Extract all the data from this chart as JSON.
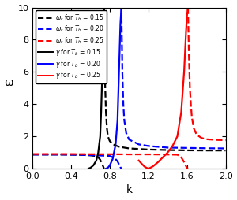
{
  "xlabel": "k",
  "ylabel": "ω",
  "xlim": [
    0.0,
    2.0
  ],
  "ylim": [
    0.0,
    10.0
  ],
  "xticks": [
    0.0,
    0.4,
    0.8,
    1.2,
    1.6,
    2.0
  ],
  "yticks": [
    0,
    2,
    4,
    6,
    8,
    10
  ],
  "legend_entries": [
    {
      "label": "$\\omega_r$ for $T_b$ = 0.15",
      "color": "black",
      "ls": "dashed"
    },
    {
      "label": "$\\omega_r$ for $T_b$ = 0.20",
      "color": "blue",
      "ls": "dashed"
    },
    {
      "label": "$\\omega_r$ for $T_b$ = 0.25",
      "color": "red",
      "ls": "dashed"
    },
    {
      "label": "$\\gamma$ for $T_b$ = 0.15",
      "color": "black",
      "ls": "solid"
    },
    {
      "label": "$\\gamma$ for $T_b$ = 0.20",
      "color": "blue",
      "ls": "solid"
    },
    {
      "label": "$\\gamma$ for $T_b$ = 0.25",
      "color": "red",
      "ls": "solid"
    }
  ],
  "curves": {
    "omega_r_black": {
      "color": "black",
      "ls": "dashed",
      "lw": 1.6,
      "segments": [
        {
          "k": [
            0.0,
            0.1,
            0.2,
            0.3,
            0.4,
            0.5,
            0.6,
            0.65,
            0.68,
            0.7,
            0.72,
            0.73,
            0.74
          ],
          "omega": [
            0.87,
            0.87,
            0.87,
            0.87,
            0.86,
            0.85,
            0.82,
            0.78,
            0.7,
            0.55,
            0.3,
            0.15,
            0.0
          ]
        },
        {
          "k": [
            0.74,
            0.745,
            0.75,
            0.76,
            0.77,
            0.78,
            0.8,
            0.85,
            0.9,
            1.0,
            1.2,
            1.4,
            1.6,
            1.8,
            2.0
          ],
          "omega": [
            10.0,
            8.0,
            5.5,
            3.5,
            2.5,
            2.0,
            1.7,
            1.45,
            1.35,
            1.25,
            1.18,
            1.15,
            1.13,
            1.12,
            1.12
          ]
        }
      ]
    },
    "omega_r_blue": {
      "color": "blue",
      "ls": "dashed",
      "lw": 1.6,
      "segments": [
        {
          "k": [
            0.0,
            0.1,
            0.2,
            0.3,
            0.4,
            0.5,
            0.6,
            0.7,
            0.8,
            0.85,
            0.88,
            0.9,
            0.91,
            0.92
          ],
          "omega": [
            0.87,
            0.87,
            0.87,
            0.87,
            0.86,
            0.85,
            0.83,
            0.81,
            0.78,
            0.65,
            0.45,
            0.2,
            0.08,
            0.0
          ]
        },
        {
          "k": [
            0.92,
            0.925,
            0.93,
            0.94,
            0.95,
            0.97,
            1.0,
            1.1,
            1.2,
            1.4,
            1.6,
            1.8,
            2.0
          ],
          "omega": [
            10.0,
            8.0,
            6.0,
            4.0,
            3.0,
            2.2,
            1.8,
            1.5,
            1.4,
            1.3,
            1.28,
            1.26,
            1.25
          ]
        }
      ]
    },
    "omega_r_red": {
      "color": "red",
      "ls": "dashed",
      "lw": 1.6,
      "segments": [
        {
          "k": [
            0.0,
            0.2,
            0.4,
            0.6,
            0.8,
            1.0,
            1.2,
            1.4,
            1.5,
            1.54,
            1.57,
            1.59,
            1.6,
            1.61
          ],
          "omega": [
            0.9,
            0.9,
            0.9,
            0.89,
            0.89,
            0.88,
            0.88,
            0.87,
            0.86,
            0.7,
            0.4,
            0.15,
            0.04,
            0.0
          ]
        },
        {
          "k": [
            1.61,
            1.615,
            1.62,
            1.63,
            1.64,
            1.65,
            1.67,
            1.7,
            1.75,
            1.8,
            1.9,
            2.0
          ],
          "omega": [
            10.0,
            8.5,
            7.0,
            5.0,
            4.0,
            3.2,
            2.5,
            2.1,
            1.9,
            1.82,
            1.78,
            1.76
          ]
        }
      ]
    },
    "gamma_black": {
      "color": "black",
      "ls": "solid",
      "lw": 1.6,
      "segments": [
        {
          "k": [
            0.58,
            0.6,
            0.63,
            0.66,
            0.68,
            0.7,
            0.71,
            0.72,
            0.73,
            0.74
          ],
          "omega": [
            0.0,
            0.05,
            0.2,
            0.5,
            1.0,
            2.0,
            3.5,
            5.5,
            8.0,
            10.0
          ]
        }
      ]
    },
    "gamma_blue": {
      "color": "blue",
      "ls": "solid",
      "lw": 1.6,
      "segments": [
        {
          "k": [
            0.76,
            0.78,
            0.8,
            0.83,
            0.86,
            0.88,
            0.89,
            0.9,
            0.91,
            0.92
          ],
          "omega": [
            0.0,
            0.05,
            0.2,
            0.6,
            1.5,
            3.0,
            5.0,
            7.0,
            9.0,
            10.0
          ]
        }
      ]
    },
    "gamma_red": {
      "color": "red",
      "ls": "solid",
      "lw": 1.6,
      "segments": [
        {
          "k": [
            1.1,
            1.13,
            1.16,
            1.18,
            1.2,
            1.22,
            1.25,
            1.3,
            1.35,
            1.4,
            1.45,
            1.5,
            1.54,
            1.57,
            1.59,
            1.6,
            1.61
          ],
          "omega": [
            0.5,
            0.3,
            0.12,
            0.05,
            0.0,
            0.05,
            0.15,
            0.4,
            0.7,
            1.0,
            1.4,
            2.0,
            3.5,
            6.0,
            8.5,
            9.5,
            10.0
          ]
        }
      ]
    }
  }
}
